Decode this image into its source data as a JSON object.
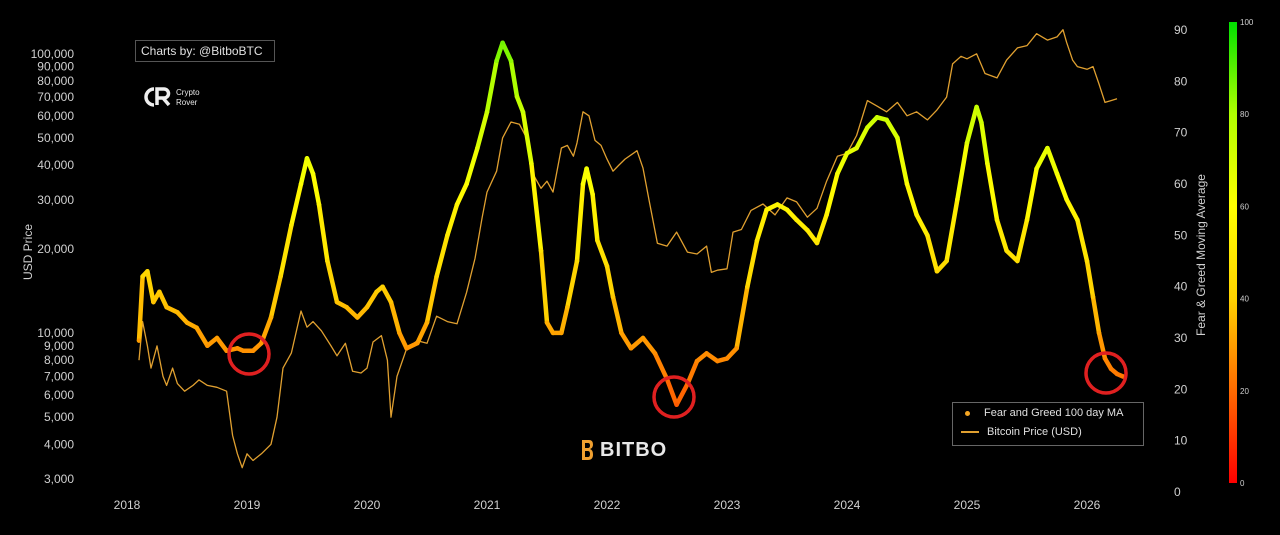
{
  "credit_label": "Charts by: @BitboBTC",
  "watermark": {
    "name_line1": "Crypto",
    "name_line2": "Rover",
    "icon": "cr-monogram-icon"
  },
  "brand": {
    "text": "BITBO",
    "icon": "bitbo-b-icon"
  },
  "colors": {
    "background": "#000000",
    "price_line": "#e0a030",
    "circle": "#e02020",
    "fg_low": "#ff0000",
    "fg_mid": "#ffff00",
    "fg_high": "#00dd00"
  },
  "chart_data": {
    "type": "line",
    "title": "",
    "left_axis": {
      "label": "USD Price",
      "scale": "log",
      "range": [
        2700,
        130000
      ],
      "ticks": [
        3000,
        4000,
        5000,
        6000,
        7000,
        8000,
        9000,
        10000,
        20000,
        30000,
        40000,
        50000,
        60000,
        70000,
        80000,
        90000,
        100000
      ],
      "tick_labels": [
        "3,000",
        "4,000",
        "5,000",
        "6,000",
        "7,000",
        "8,000",
        "9,000",
        "10,000",
        "20,000",
        "30,000",
        "40,000",
        "50,000",
        "60,000",
        "70,000",
        "80,000",
        "90,000",
        "100,000"
      ]
    },
    "right_axis": {
      "label": "Fear & Greed Moving Average",
      "range": [
        0,
        90
      ],
      "ticks": [
        0,
        10,
        20,
        30,
        40,
        50,
        60,
        70,
        80,
        90
      ]
    },
    "colorbar": {
      "range": [
        0,
        100
      ],
      "ticks": [
        0,
        20,
        40,
        60,
        80,
        100
      ]
    },
    "x_axis": {
      "range": [
        2018.0,
        2026.35
      ],
      "ticks": [
        "2018",
        "2019",
        "2020",
        "2021",
        "2022",
        "2023",
        "2024",
        "2025",
        "2026"
      ]
    },
    "legend": {
      "placement": "bottom-right",
      "entries": [
        "Fear and Greed 100 day MA",
        "Bitcoin Price (USD)"
      ]
    },
    "series": [
      {
        "name": "Fear and Greed 100 day MA",
        "axis": "right",
        "points": [
          [
            2018.1,
            29.5
          ],
          [
            2018.13,
            42
          ],
          [
            2018.17,
            43
          ],
          [
            2018.22,
            37
          ],
          [
            2018.27,
            39
          ],
          [
            2018.33,
            36
          ],
          [
            2018.42,
            35
          ],
          [
            2018.5,
            33
          ],
          [
            2018.58,
            32
          ],
          [
            2018.67,
            28.5
          ],
          [
            2018.75,
            30
          ],
          [
            2018.83,
            27.5
          ],
          [
            2018.92,
            28
          ],
          [
            2018.97,
            27.5
          ],
          [
            2019.05,
            27.5
          ],
          [
            2019.12,
            29
          ],
          [
            2019.2,
            34
          ],
          [
            2019.28,
            42
          ],
          [
            2019.37,
            52
          ],
          [
            2019.45,
            60
          ],
          [
            2019.5,
            65
          ],
          [
            2019.55,
            62
          ],
          [
            2019.6,
            56
          ],
          [
            2019.67,
            45
          ],
          [
            2019.75,
            37
          ],
          [
            2019.83,
            36
          ],
          [
            2019.92,
            34
          ],
          [
            2020.0,
            36
          ],
          [
            2020.08,
            39
          ],
          [
            2020.13,
            40
          ],
          [
            2020.2,
            37
          ],
          [
            2020.27,
            31
          ],
          [
            2020.33,
            28
          ],
          [
            2020.42,
            29
          ],
          [
            2020.5,
            33
          ],
          [
            2020.58,
            42
          ],
          [
            2020.67,
            50
          ],
          [
            2020.75,
            56
          ],
          [
            2020.83,
            60
          ],
          [
            2020.92,
            67
          ],
          [
            2021.0,
            74
          ],
          [
            2021.08,
            84
          ],
          [
            2021.13,
            87.5
          ],
          [
            2021.2,
            84
          ],
          [
            2021.25,
            77
          ],
          [
            2021.3,
            74
          ],
          [
            2021.37,
            64
          ],
          [
            2021.45,
            47
          ],
          [
            2021.5,
            33
          ],
          [
            2021.55,
            31
          ],
          [
            2021.62,
            31
          ],
          [
            2021.67,
            36
          ],
          [
            2021.75,
            45
          ],
          [
            2021.8,
            60
          ],
          [
            2021.83,
            63
          ],
          [
            2021.88,
            58
          ],
          [
            2021.92,
            49
          ],
          [
            2022.0,
            44
          ],
          [
            2022.05,
            38
          ],
          [
            2022.12,
            31
          ],
          [
            2022.2,
            28
          ],
          [
            2022.3,
            30
          ],
          [
            2022.4,
            27
          ],
          [
            2022.5,
            22
          ],
          [
            2022.58,
            17
          ],
          [
            2022.67,
            21
          ],
          [
            2022.75,
            25.5
          ],
          [
            2022.83,
            27
          ],
          [
            2022.92,
            25.5
          ],
          [
            2023.0,
            26
          ],
          [
            2023.08,
            28
          ],
          [
            2023.17,
            40
          ],
          [
            2023.25,
            49
          ],
          [
            2023.33,
            55
          ],
          [
            2023.42,
            56
          ],
          [
            2023.5,
            55
          ],
          [
            2023.58,
            53
          ],
          [
            2023.67,
            51
          ],
          [
            2023.75,
            48.5
          ],
          [
            2023.83,
            54
          ],
          [
            2023.92,
            62
          ],
          [
            2024.0,
            66
          ],
          [
            2024.08,
            67
          ],
          [
            2024.17,
            71
          ],
          [
            2024.25,
            73
          ],
          [
            2024.33,
            72.5
          ],
          [
            2024.42,
            69
          ],
          [
            2024.5,
            60
          ],
          [
            2024.58,
            54
          ],
          [
            2024.67,
            50
          ],
          [
            2024.75,
            43
          ],
          [
            2024.83,
            45
          ],
          [
            2024.92,
            57
          ],
          [
            2025.0,
            68
          ],
          [
            2025.08,
            75
          ],
          [
            2025.12,
            72
          ],
          [
            2025.17,
            64
          ],
          [
            2025.25,
            53
          ],
          [
            2025.33,
            47
          ],
          [
            2025.42,
            45
          ],
          [
            2025.5,
            53
          ],
          [
            2025.58,
            63
          ],
          [
            2025.67,
            67
          ],
          [
            2025.75,
            62
          ],
          [
            2025.83,
            57
          ],
          [
            2025.92,
            53
          ],
          [
            2026.0,
            45
          ],
          [
            2026.05,
            38
          ],
          [
            2026.1,
            31
          ],
          [
            2026.15,
            26
          ],
          [
            2026.2,
            24
          ],
          [
            2026.25,
            23
          ],
          [
            2026.3,
            22.5
          ]
        ]
      },
      {
        "name": "Bitcoin Price (USD)",
        "axis": "left",
        "points": [
          [
            2018.1,
            8000
          ],
          [
            2018.13,
            11000
          ],
          [
            2018.17,
            9000
          ],
          [
            2018.2,
            7500
          ],
          [
            2018.25,
            9000
          ],
          [
            2018.3,
            7000
          ],
          [
            2018.33,
            6500
          ],
          [
            2018.38,
            7500
          ],
          [
            2018.42,
            6600
          ],
          [
            2018.48,
            6200
          ],
          [
            2018.55,
            6500
          ],
          [
            2018.6,
            6800
          ],
          [
            2018.67,
            6500
          ],
          [
            2018.75,
            6400
          ],
          [
            2018.83,
            6200
          ],
          [
            2018.88,
            4300
          ],
          [
            2018.92,
            3700
          ],
          [
            2018.96,
            3300
          ],
          [
            2019.0,
            3700
          ],
          [
            2019.05,
            3500
          ],
          [
            2019.12,
            3700
          ],
          [
            2019.2,
            4000
          ],
          [
            2019.25,
            5000
          ],
          [
            2019.3,
            7500
          ],
          [
            2019.37,
            8500
          ],
          [
            2019.45,
            12000
          ],
          [
            2019.5,
            10500
          ],
          [
            2019.55,
            11000
          ],
          [
            2019.62,
            10200
          ],
          [
            2019.7,
            9000
          ],
          [
            2019.75,
            8300
          ],
          [
            2019.82,
            9200
          ],
          [
            2019.88,
            7300
          ],
          [
            2019.95,
            7200
          ],
          [
            2020.0,
            7500
          ],
          [
            2020.05,
            9300
          ],
          [
            2020.12,
            9800
          ],
          [
            2020.17,
            8000
          ],
          [
            2020.2,
            5000
          ],
          [
            2020.25,
            7000
          ],
          [
            2020.33,
            8800
          ],
          [
            2020.42,
            9400
          ],
          [
            2020.5,
            9200
          ],
          [
            2020.58,
            11500
          ],
          [
            2020.67,
            11000
          ],
          [
            2020.75,
            10800
          ],
          [
            2020.83,
            14000
          ],
          [
            2020.9,
            18500
          ],
          [
            2020.96,
            26000
          ],
          [
            2021.0,
            32000
          ],
          [
            2021.08,
            38000
          ],
          [
            2021.13,
            50000
          ],
          [
            2021.2,
            57000
          ],
          [
            2021.27,
            56000
          ],
          [
            2021.33,
            50000
          ],
          [
            2021.37,
            38000
          ],
          [
            2021.45,
            33000
          ],
          [
            2021.5,
            35000
          ],
          [
            2021.55,
            32000
          ],
          [
            2021.62,
            46000
          ],
          [
            2021.67,
            47000
          ],
          [
            2021.72,
            43000
          ],
          [
            2021.75,
            48000
          ],
          [
            2021.8,
            62000
          ],
          [
            2021.85,
            60000
          ],
          [
            2021.9,
            49000
          ],
          [
            2021.95,
            47000
          ],
          [
            2022.0,
            42000
          ],
          [
            2022.05,
            38000
          ],
          [
            2022.1,
            40000
          ],
          [
            2022.15,
            42000
          ],
          [
            2022.25,
            45000
          ],
          [
            2022.3,
            39000
          ],
          [
            2022.35,
            30000
          ],
          [
            2022.42,
            21000
          ],
          [
            2022.5,
            20500
          ],
          [
            2022.58,
            23000
          ],
          [
            2022.67,
            19500
          ],
          [
            2022.75,
            19200
          ],
          [
            2022.83,
            20500
          ],
          [
            2022.87,
            16500
          ],
          [
            2022.92,
            16800
          ],
          [
            2023.0,
            17000
          ],
          [
            2023.05,
            23000
          ],
          [
            2023.12,
            23500
          ],
          [
            2023.2,
            27500
          ],
          [
            2023.3,
            29000
          ],
          [
            2023.4,
            26500
          ],
          [
            2023.5,
            30500
          ],
          [
            2023.58,
            29500
          ],
          [
            2023.67,
            26000
          ],
          [
            2023.75,
            28000
          ],
          [
            2023.83,
            35000
          ],
          [
            2023.92,
            43000
          ],
          [
            2024.0,
            44000
          ],
          [
            2024.08,
            51000
          ],
          [
            2024.17,
            68000
          ],
          [
            2024.25,
            65000
          ],
          [
            2024.33,
            62000
          ],
          [
            2024.42,
            67000
          ],
          [
            2024.5,
            60000
          ],
          [
            2024.58,
            62000
          ],
          [
            2024.67,
            58000
          ],
          [
            2024.75,
            63000
          ],
          [
            2024.83,
            70000
          ],
          [
            2024.88,
            92000
          ],
          [
            2024.95,
            98000
          ],
          [
            2025.0,
            96000
          ],
          [
            2025.08,
            100000
          ],
          [
            2025.15,
            85000
          ],
          [
            2025.25,
            82000
          ],
          [
            2025.33,
            95000
          ],
          [
            2025.42,
            105000
          ],
          [
            2025.5,
            107000
          ],
          [
            2025.58,
            118000
          ],
          [
            2025.67,
            112000
          ],
          [
            2025.75,
            115000
          ],
          [
            2025.8,
            122000
          ],
          [
            2025.83,
            110000
          ],
          [
            2025.88,
            95000
          ],
          [
            2025.92,
            90000
          ],
          [
            2026.0,
            88000
          ],
          [
            2026.05,
            90000
          ],
          [
            2026.1,
            78000
          ],
          [
            2026.15,
            67000
          ],
          [
            2026.2,
            68000
          ],
          [
            2026.25,
            69000
          ]
        ]
      }
    ]
  }
}
